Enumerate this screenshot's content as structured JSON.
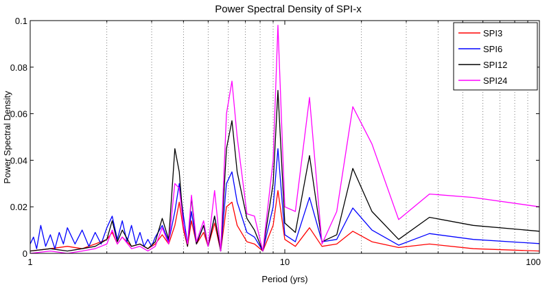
{
  "chart_data": {
    "type": "line",
    "title": "Power Spectral Density of SPI-x",
    "xlabel": "Period (yrs)",
    "ylabel": "Power Spectral Density",
    "xscale": "log",
    "xlim": [
      1,
      100
    ],
    "ylim": [
      0,
      0.1
    ],
    "x_ticks": [
      1,
      10,
      100
    ],
    "x_tick_labels": [
      "1",
      "10",
      "100"
    ],
    "y_ticks": [
      0,
      0.02,
      0.04,
      0.06,
      0.08,
      0.1
    ],
    "y_tick_labels": [
      "0",
      "0.02",
      "0.04",
      "0.06",
      "0.08",
      "0.1"
    ],
    "grid": "vertical minor dotted",
    "legend_position": "top-right",
    "series": [
      {
        "name": "SPI3",
        "color": "#ff0000",
        "points": [
          [
            1.0,
            0.001
          ],
          [
            1.2,
            0.002
          ],
          [
            1.4,
            0.003
          ],
          [
            1.6,
            0.002
          ],
          [
            1.8,
            0.004
          ],
          [
            2.0,
            0.006
          ],
          [
            2.1,
            0.009
          ],
          [
            2.2,
            0.004
          ],
          [
            2.3,
            0.007
          ],
          [
            2.5,
            0.003
          ],
          [
            2.7,
            0.004
          ],
          [
            2.9,
            0.002
          ],
          [
            3.1,
            0.004
          ],
          [
            3.3,
            0.008
          ],
          [
            3.5,
            0.004
          ],
          [
            3.7,
            0.012
          ],
          [
            3.85,
            0.022
          ],
          [
            4.0,
            0.01
          ],
          [
            4.15,
            0.003
          ],
          [
            4.3,
            0.014
          ],
          [
            4.5,
            0.004
          ],
          [
            4.8,
            0.009
          ],
          [
            5.0,
            0.003
          ],
          [
            5.3,
            0.013
          ],
          [
            5.6,
            0.001
          ],
          [
            5.9,
            0.02
          ],
          [
            6.2,
            0.022
          ],
          [
            6.5,
            0.012
          ],
          [
            7.1,
            0.005
          ],
          [
            7.6,
            0.004
          ],
          [
            8.2,
            0.001
          ],
          [
            9.0,
            0.012
          ],
          [
            9.4,
            0.027
          ],
          [
            10.0,
            0.006
          ],
          [
            11.0,
            0.003
          ],
          [
            12.5,
            0.011
          ],
          [
            14.0,
            0.003
          ],
          [
            16.0,
            0.004
          ],
          [
            18.5,
            0.0095
          ],
          [
            22.0,
            0.005
          ],
          [
            28.0,
            0.0025
          ],
          [
            37.0,
            0.004
          ],
          [
            55.0,
            0.002
          ],
          [
            100.0,
            0.001
          ]
        ]
      },
      {
        "name": "SPI6",
        "color": "#0000ff",
        "points": [
          [
            1.0,
            0.004
          ],
          [
            1.03,
            0.007
          ],
          [
            1.06,
            0.002
          ],
          [
            1.1,
            0.012
          ],
          [
            1.15,
            0.003
          ],
          [
            1.2,
            0.008
          ],
          [
            1.25,
            0.002
          ],
          [
            1.3,
            0.009
          ],
          [
            1.35,
            0.004
          ],
          [
            1.4,
            0.011
          ],
          [
            1.5,
            0.004
          ],
          [
            1.6,
            0.01
          ],
          [
            1.7,
            0.003
          ],
          [
            1.8,
            0.009
          ],
          [
            1.9,
            0.004
          ],
          [
            2.0,
            0.011
          ],
          [
            2.1,
            0.016
          ],
          [
            2.2,
            0.006
          ],
          [
            2.3,
            0.014
          ],
          [
            2.4,
            0.005
          ],
          [
            2.5,
            0.012
          ],
          [
            2.6,
            0.004
          ],
          [
            2.7,
            0.009
          ],
          [
            2.8,
            0.003
          ],
          [
            2.9,
            0.006
          ],
          [
            3.0,
            0.003
          ],
          [
            3.1,
            0.007
          ],
          [
            3.3,
            0.012
          ],
          [
            3.5,
            0.005
          ],
          [
            3.7,
            0.018
          ],
          [
            3.85,
            0.03
          ],
          [
            4.0,
            0.016
          ],
          [
            4.15,
            0.004
          ],
          [
            4.3,
            0.018
          ],
          [
            4.5,
            0.004
          ],
          [
            4.8,
            0.012
          ],
          [
            5.0,
            0.003
          ],
          [
            5.3,
            0.016
          ],
          [
            5.6,
            0.001
          ],
          [
            5.9,
            0.03
          ],
          [
            6.2,
            0.035
          ],
          [
            6.5,
            0.022
          ],
          [
            7.1,
            0.009
          ],
          [
            7.6,
            0.007
          ],
          [
            8.2,
            0.001
          ],
          [
            9.0,
            0.02
          ],
          [
            9.4,
            0.045
          ],
          [
            10.0,
            0.008
          ],
          [
            11.0,
            0.005
          ],
          [
            12.5,
            0.024
          ],
          [
            14.0,
            0.005
          ],
          [
            16.0,
            0.006
          ],
          [
            18.5,
            0.0195
          ],
          [
            22.0,
            0.01
          ],
          [
            28.0,
            0.0035
          ],
          [
            37.0,
            0.0085
          ],
          [
            55.0,
            0.006
          ],
          [
            100.0,
            0.0042
          ]
        ]
      },
      {
        "name": "SPI12",
        "color": "#000000",
        "points": [
          [
            1.0,
            0.001
          ],
          [
            1.2,
            0.002
          ],
          [
            1.4,
            0.001
          ],
          [
            1.6,
            0.002
          ],
          [
            1.8,
            0.003
          ],
          [
            2.0,
            0.006
          ],
          [
            2.1,
            0.014
          ],
          [
            2.2,
            0.005
          ],
          [
            2.3,
            0.01
          ],
          [
            2.5,
            0.003
          ],
          [
            2.7,
            0.004
          ],
          [
            2.9,
            0.002
          ],
          [
            3.1,
            0.005
          ],
          [
            3.3,
            0.015
          ],
          [
            3.5,
            0.006
          ],
          [
            3.7,
            0.045
          ],
          [
            3.85,
            0.035
          ],
          [
            4.0,
            0.012
          ],
          [
            4.15,
            0.003
          ],
          [
            4.3,
            0.024
          ],
          [
            4.5,
            0.004
          ],
          [
            4.8,
            0.012
          ],
          [
            5.0,
            0.003
          ],
          [
            5.3,
            0.016
          ],
          [
            5.6,
            0.001
          ],
          [
            5.9,
            0.045
          ],
          [
            6.2,
            0.057
          ],
          [
            6.5,
            0.035
          ],
          [
            7.1,
            0.015
          ],
          [
            7.6,
            0.01
          ],
          [
            8.2,
            0.001
          ],
          [
            9.0,
            0.03
          ],
          [
            9.4,
            0.07
          ],
          [
            10.0,
            0.013
          ],
          [
            11.0,
            0.009
          ],
          [
            12.5,
            0.042
          ],
          [
            14.0,
            0.005
          ],
          [
            16.0,
            0.008
          ],
          [
            18.5,
            0.0365
          ],
          [
            22.0,
            0.018
          ],
          [
            28.0,
            0.006
          ],
          [
            37.0,
            0.0155
          ],
          [
            55.0,
            0.012
          ],
          [
            100.0,
            0.0095
          ]
        ]
      },
      {
        "name": "SPI24",
        "color": "#ff00ff",
        "points": [
          [
            1.0,
            0.0
          ],
          [
            1.2,
            0.001
          ],
          [
            1.4,
            0.0
          ],
          [
            1.6,
            0.001
          ],
          [
            1.8,
            0.002
          ],
          [
            2.0,
            0.004
          ],
          [
            2.1,
            0.01
          ],
          [
            2.2,
            0.004
          ],
          [
            2.3,
            0.007
          ],
          [
            2.5,
            0.002
          ],
          [
            2.7,
            0.003
          ],
          [
            2.9,
            0.001
          ],
          [
            3.1,
            0.003
          ],
          [
            3.3,
            0.011
          ],
          [
            3.5,
            0.004
          ],
          [
            3.7,
            0.03
          ],
          [
            3.85,
            0.028
          ],
          [
            4.0,
            0.012
          ],
          [
            4.15,
            0.004
          ],
          [
            4.3,
            0.025
          ],
          [
            4.5,
            0.005
          ],
          [
            4.8,
            0.014
          ],
          [
            5.0,
            0.003
          ],
          [
            5.3,
            0.027
          ],
          [
            5.6,
            0.001
          ],
          [
            5.9,
            0.06
          ],
          [
            6.2,
            0.074
          ],
          [
            6.5,
            0.05
          ],
          [
            7.1,
            0.017
          ],
          [
            7.6,
            0.016
          ],
          [
            8.2,
            0.001
          ],
          [
            9.0,
            0.04
          ],
          [
            9.4,
            0.098
          ],
          [
            10.0,
            0.02
          ],
          [
            11.0,
            0.018
          ],
          [
            12.5,
            0.067
          ],
          [
            14.0,
            0.004
          ],
          [
            16.0,
            0.018
          ],
          [
            18.5,
            0.063
          ],
          [
            22.0,
            0.047
          ],
          [
            28.0,
            0.0145
          ],
          [
            37.0,
            0.0255
          ],
          [
            55.0,
            0.024
          ],
          [
            100.0,
            0.02
          ]
        ]
      }
    ]
  }
}
